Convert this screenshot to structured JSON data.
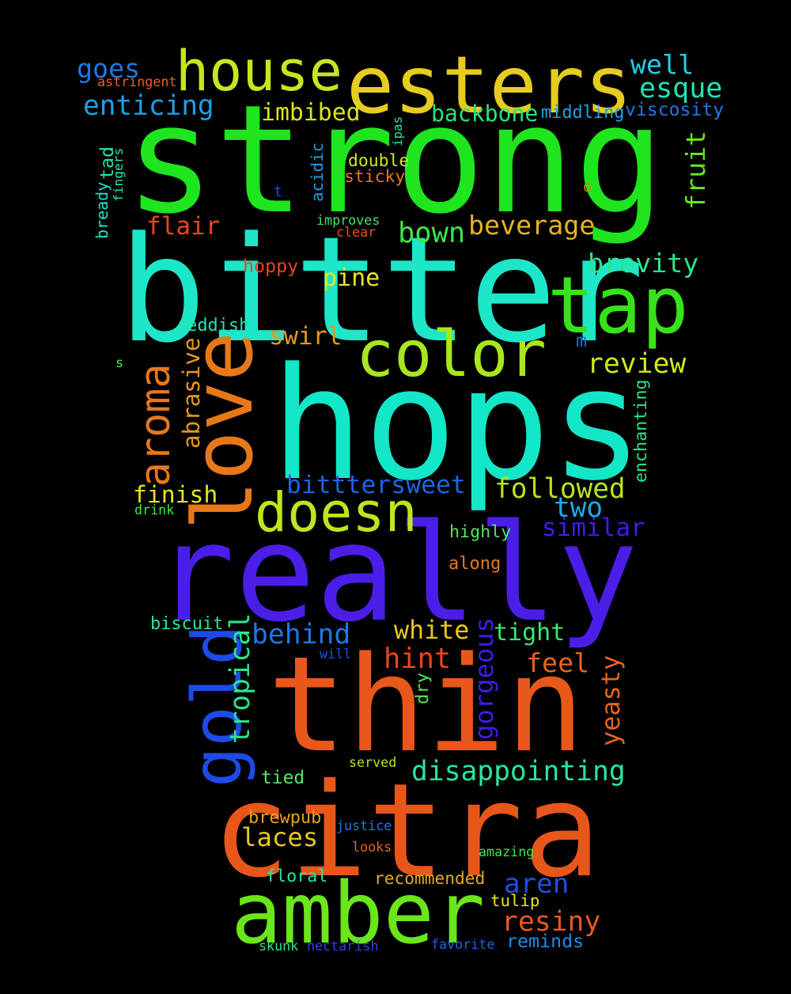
{
  "background": "#000000",
  "words": [
    {
      "text": "strong",
      "color": "#1ee51e"
    },
    {
      "text": "hops",
      "color": "#14e6c8"
    },
    {
      "text": "bitter",
      "color": "#1ee6c8"
    },
    {
      "text": "really",
      "color": "#4a1ee6"
    },
    {
      "text": "thin",
      "color": "#e8581a"
    },
    {
      "text": "citra",
      "color": "#e8561a"
    },
    {
      "text": "esters",
      "color": "#e6cc1e"
    },
    {
      "text": "house",
      "color": "#c6e61e"
    },
    {
      "text": "love",
      "color": "#e6781a"
    },
    {
      "text": "tap",
      "color": "#38e21a"
    },
    {
      "text": "amber",
      "color": "#6ae61a"
    },
    {
      "text": "color",
      "color": "#a8e61e"
    },
    {
      "text": "doesn",
      "color": "#bce61e"
    },
    {
      "text": "gold",
      "color": "#1e4ae6"
    },
    {
      "text": "aroma",
      "color": "#e6781a"
    },
    {
      "text": "tropical",
      "color": "#28e68c"
    },
    {
      "text": "disappointing",
      "color": "#28e6a0"
    },
    {
      "text": "bitttersweet",
      "color": "#1e64e6"
    },
    {
      "text": "followed",
      "color": "#b4e61e"
    },
    {
      "text": "gorgeous",
      "color": "#3c1ee6"
    },
    {
      "text": "resiny",
      "color": "#e65a1e"
    },
    {
      "text": "enticing",
      "color": "#1ea0e6"
    },
    {
      "text": "behind",
      "color": "#1e78e6"
    },
    {
      "text": "similar",
      "color": "#3c1ee6"
    },
    {
      "text": "yeasty",
      "color": "#e6641e"
    },
    {
      "text": "imbibed",
      "color": "#d8e61e"
    },
    {
      "text": "beverage",
      "color": "#e6b41e"
    },
    {
      "text": "brevity",
      "color": "#28e68c"
    },
    {
      "text": "backbone",
      "color": "#28e678"
    },
    {
      "text": "esque",
      "color": "#1ee6b4"
    },
    {
      "text": "well",
      "color": "#1ed2e6"
    },
    {
      "text": "goes",
      "color": "#1e78e6"
    },
    {
      "text": "abrasive",
      "color": "#e6961e"
    },
    {
      "text": "review",
      "color": "#d2e61e"
    },
    {
      "text": "aren",
      "color": "#1e50e6"
    },
    {
      "text": "hint",
      "color": "#e6461e"
    },
    {
      "text": "feel",
      "color": "#e6641e"
    },
    {
      "text": "white",
      "color": "#e6c81e"
    },
    {
      "text": "tight",
      "color": "#3ce66e"
    },
    {
      "text": "fruit",
      "color": "#64e61e"
    },
    {
      "text": "finish",
      "color": "#e6e61e"
    },
    {
      "text": "swirl",
      "color": "#e6961e"
    },
    {
      "text": "bown",
      "color": "#3ce64a"
    },
    {
      "text": "flair",
      "color": "#e6461e"
    },
    {
      "text": "two",
      "color": "#1eaae6"
    },
    {
      "text": "laces",
      "color": "#e6c81e"
    },
    {
      "text": "pine",
      "color": "#e6e61e"
    },
    {
      "text": "viscosity",
      "color": "#1e78e6"
    },
    {
      "text": "middling",
      "color": "#1ea0e6"
    },
    {
      "text": "recommended",
      "color": "#e6aa1e"
    },
    {
      "text": "reminds",
      "color": "#1e8ce6"
    },
    {
      "text": "biscuit",
      "color": "#28e69a"
    },
    {
      "text": "floral",
      "color": "#28e6a0"
    },
    {
      "text": "tulip",
      "color": "#e6e61e"
    },
    {
      "text": "brewpub",
      "color": "#e6a01e"
    },
    {
      "text": "tied",
      "color": "#50e66e"
    },
    {
      "text": "hoppy",
      "color": "#e6461e"
    },
    {
      "text": "highly",
      "color": "#50e664"
    },
    {
      "text": "along",
      "color": "#e6781e"
    },
    {
      "text": "double",
      "color": "#d2e61e"
    },
    {
      "text": "sticky",
      "color": "#e6781e"
    },
    {
      "text": "reddish",
      "color": "#1ee6b4"
    },
    {
      "text": "acidic",
      "color": "#1ea0e6"
    },
    {
      "text": "enchanting",
      "color": "#28e68c"
    },
    {
      "text": "bready",
      "color": "#1ee6c8"
    },
    {
      "text": "tad",
      "color": "#1ee6a0"
    },
    {
      "text": "dry",
      "color": "#50e650"
    },
    {
      "text": "skunk",
      "color": "#28e68c"
    },
    {
      "text": "nectarish",
      "color": "#2846e6"
    },
    {
      "text": "favorite",
      "color": "#1e64e6"
    },
    {
      "text": "amazing",
      "color": "#3ce64a"
    },
    {
      "text": "justice",
      "color": "#1e78e6"
    },
    {
      "text": "looks",
      "color": "#e6641e"
    },
    {
      "text": "served",
      "color": "#b4e61e"
    },
    {
      "text": "will",
      "color": "#1e50e6"
    },
    {
      "text": "drink",
      "color": "#3ce650"
    },
    {
      "text": "astringent",
      "color": "#e6641e"
    },
    {
      "text": "fingers",
      "color": "#28e6b4"
    },
    {
      "text": "ipas",
      "color": "#28e6a0"
    },
    {
      "text": "improves",
      "color": "#3ce664"
    },
    {
      "text": "clear",
      "color": "#e6501e"
    },
    {
      "text": "t",
      "color": "#1e50e6"
    },
    {
      "text": "o",
      "color": "#e6781e"
    },
    {
      "text": "m",
      "color": "#1e64e6"
    },
    {
      "text": "s",
      "color": "#50e650"
    }
  ]
}
